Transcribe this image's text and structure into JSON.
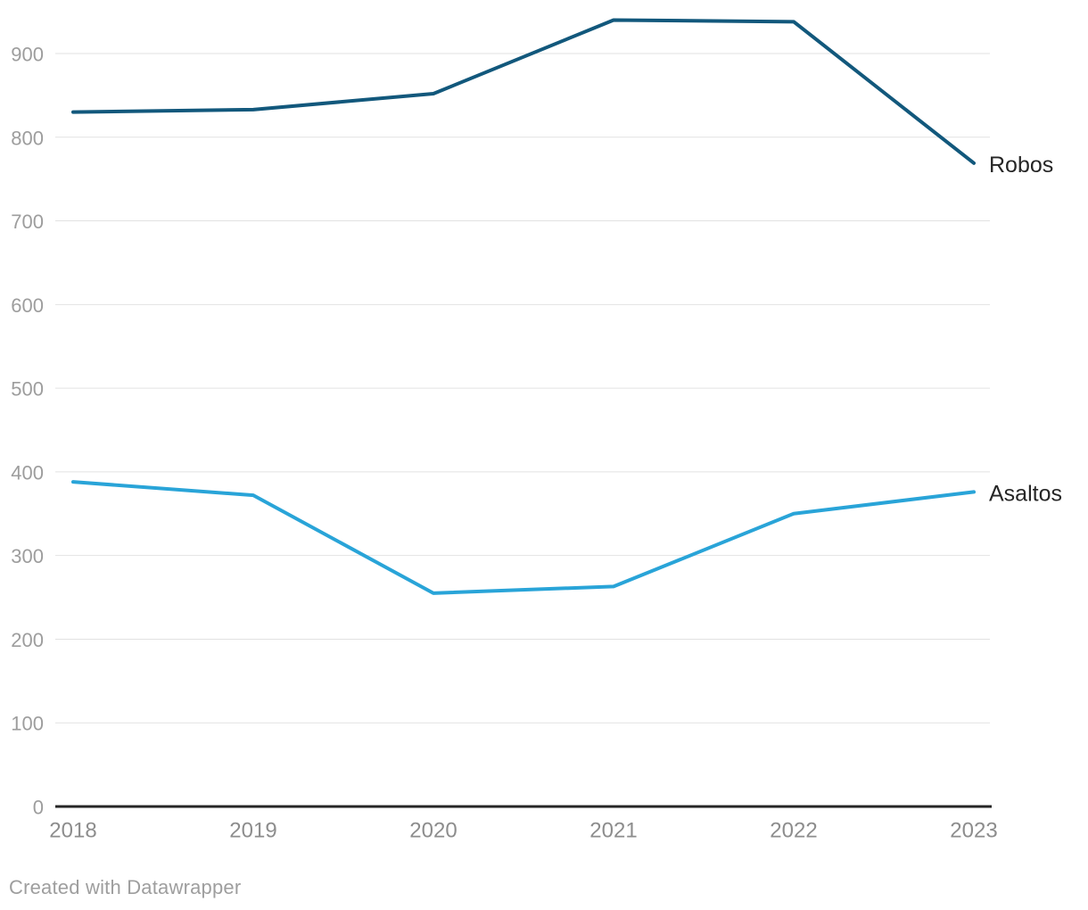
{
  "chart_data": {
    "type": "line",
    "categories": [
      "2018",
      "2019",
      "2020",
      "2021",
      "2022",
      "2023"
    ],
    "series": [
      {
        "name": "Robos",
        "color": "#12587c",
        "values": [
          830,
          833,
          852,
          940,
          938,
          769
        ]
      },
      {
        "name": "Asaltos",
        "color": "#29a4d8",
        "values": [
          388,
          372,
          255,
          263,
          350,
          376
        ]
      }
    ],
    "yticks": [
      0,
      100,
      200,
      300,
      400,
      500,
      600,
      700,
      800,
      900
    ],
    "ylim": [
      0,
      950
    ],
    "grid": "horizontal",
    "legend_position": "direct-labels-right-of-line-end"
  },
  "footer": {
    "attribution": "Created with Datawrapper"
  },
  "colors": {
    "background": "#ffffff",
    "grid": "#e2e2e2",
    "axis_line": "#252525",
    "y_tick_label": "#9d9d9d",
    "x_tick_label": "#8d8d8d",
    "series_label": "#262626",
    "attribution": "#9e9e9e"
  }
}
